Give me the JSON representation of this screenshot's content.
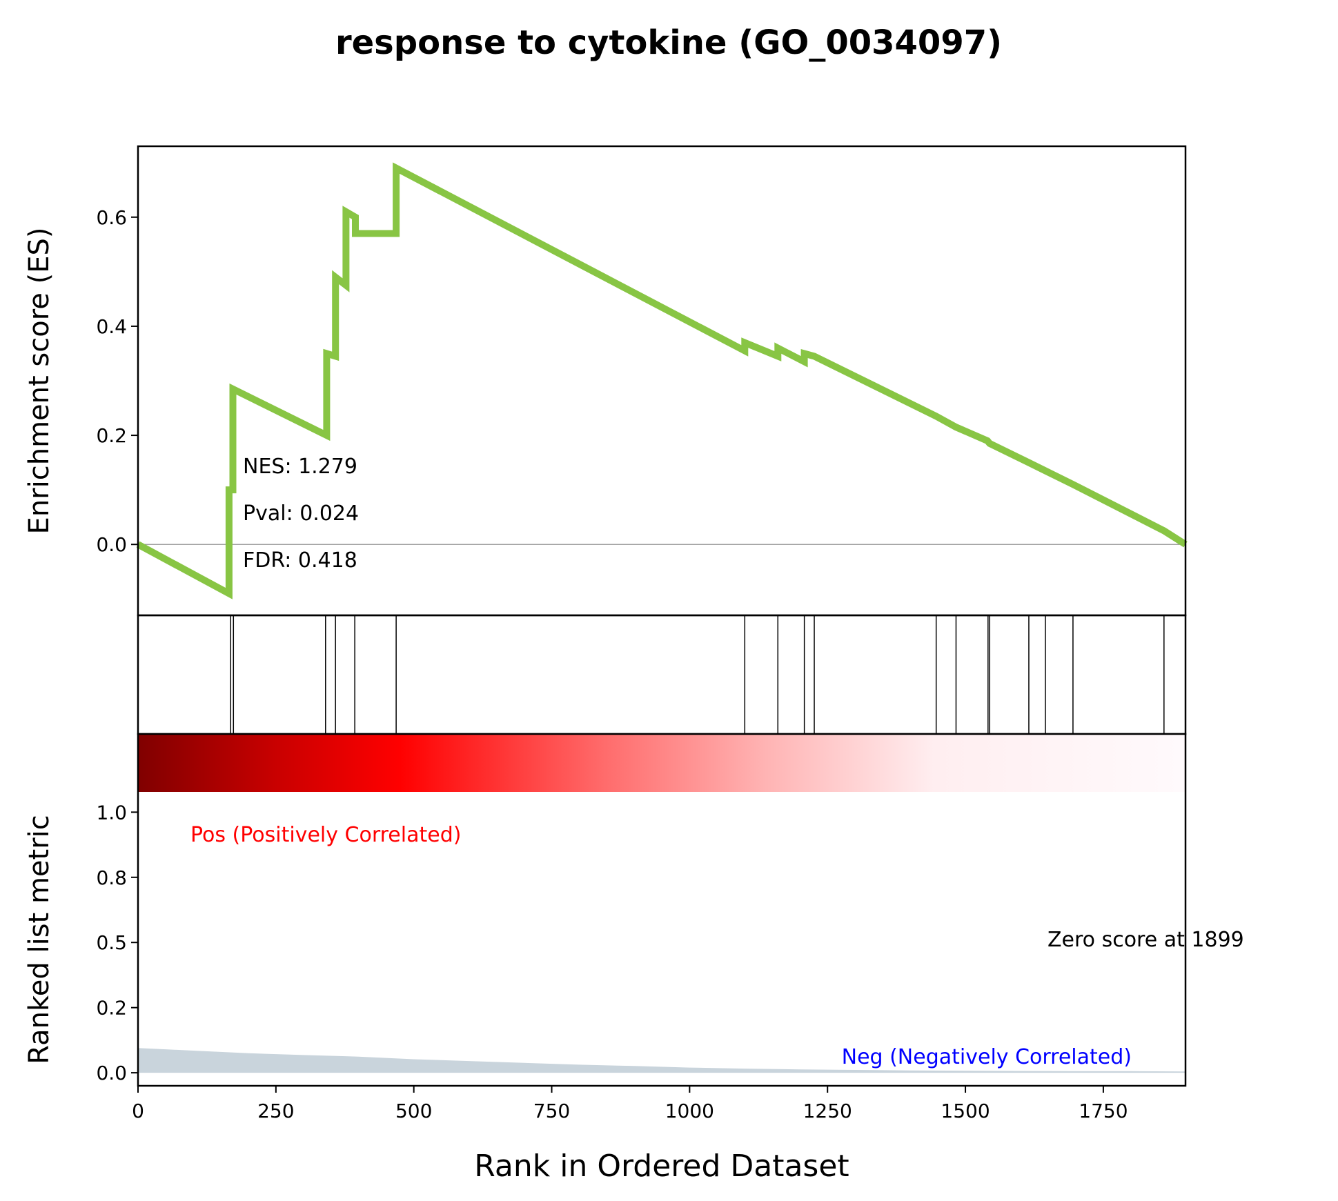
{
  "chart_data": {
    "type": "line",
    "title": "response to cytokine (GO_0034097)",
    "xlabel": "Rank in Ordered Dataset",
    "xlim": [
      0,
      1899
    ],
    "x_ticks": [
      0,
      250,
      500,
      750,
      1000,
      1250,
      1500,
      1750
    ],
    "es_panel": {
      "ylabel": "Enrichment score (ES)",
      "ylim": [
        -0.13,
        0.73
      ],
      "y_ticks": [
        0.0,
        0.2,
        0.4,
        0.6
      ],
      "y_tick_labels": [
        "0.0",
        "0.2",
        "0.4",
        "0.6"
      ],
      "series": [
        {
          "color": "#88c544",
          "x": [
            0,
            165,
            165,
            172,
            172,
            342,
            342,
            358,
            358,
            377,
            377,
            394,
            394,
            468,
            468,
            1100,
            1100,
            1160,
            1160,
            1208,
            1208,
            1226,
            1226,
            1447,
            1447,
            1483,
            1483,
            1540,
            1540,
            1544,
            1544,
            1615,
            1615,
            1645,
            1645,
            1695,
            1695,
            1860,
            1860,
            1899
          ],
          "y": [
            0.0,
            -0.09,
            0.1,
            0.1,
            0.285,
            0.2,
            0.35,
            0.345,
            0.49,
            0.475,
            0.61,
            0.6,
            0.57,
            0.57,
            0.69,
            0.355,
            0.37,
            0.345,
            0.36,
            0.335,
            0.35,
            0.345,
            0.345,
            0.235,
            0.235,
            0.215,
            0.215,
            0.19,
            0.19,
            0.185,
            0.185,
            0.15,
            0.15,
            0.135,
            0.135,
            0.11,
            0.11,
            0.025,
            0.025,
            0.0
          ]
        }
      ],
      "annotations": {
        "nes": "NES: 1.279",
        "pval": "Pval: 0.024",
        "fdr": "FDR: 0.418"
      }
    },
    "hits": [
      168,
      173,
      340,
      358,
      393,
      468,
      1100,
      1160,
      1208,
      1226,
      1447,
      1483,
      1541,
      1544,
      1615,
      1645,
      1695,
      1860
    ],
    "rank_panel": {
      "ylabel": "Ranked list metric",
      "ylim": [
        -0.05,
        1.3
      ],
      "y_ticks": [
        0.0,
        0.25,
        0.5,
        0.75,
        1.0
      ],
      "y_tick_labels": [
        "0.0",
        "0.2",
        "0.5",
        "0.8",
        "1.0"
      ],
      "metric": {
        "color": "#c9d4dc",
        "x": [
          0,
          50,
          100,
          200,
          300,
          400,
          500,
          600,
          700,
          800,
          900,
          1000,
          1100,
          1200,
          1300,
          1400,
          1500,
          1600,
          1700,
          1800,
          1899
        ],
        "y": [
          0.095,
          0.09,
          0.085,
          0.075,
          0.068,
          0.062,
          0.052,
          0.045,
          0.038,
          0.031,
          0.026,
          0.02,
          0.016,
          0.013,
          0.011,
          0.009,
          0.008,
          0.007,
          0.006,
          0.006,
          0.005
        ]
      },
      "pos_label": "Pos (Positively Correlated)",
      "neg_label": "Neg (Negatively Correlated)",
      "zero_label": "Zero score at 1899"
    },
    "colors": {
      "es_line": "#88c544",
      "pos": "#ff0000",
      "neg": "#0000ff",
      "metric_fill": "#c9d4dc"
    }
  }
}
